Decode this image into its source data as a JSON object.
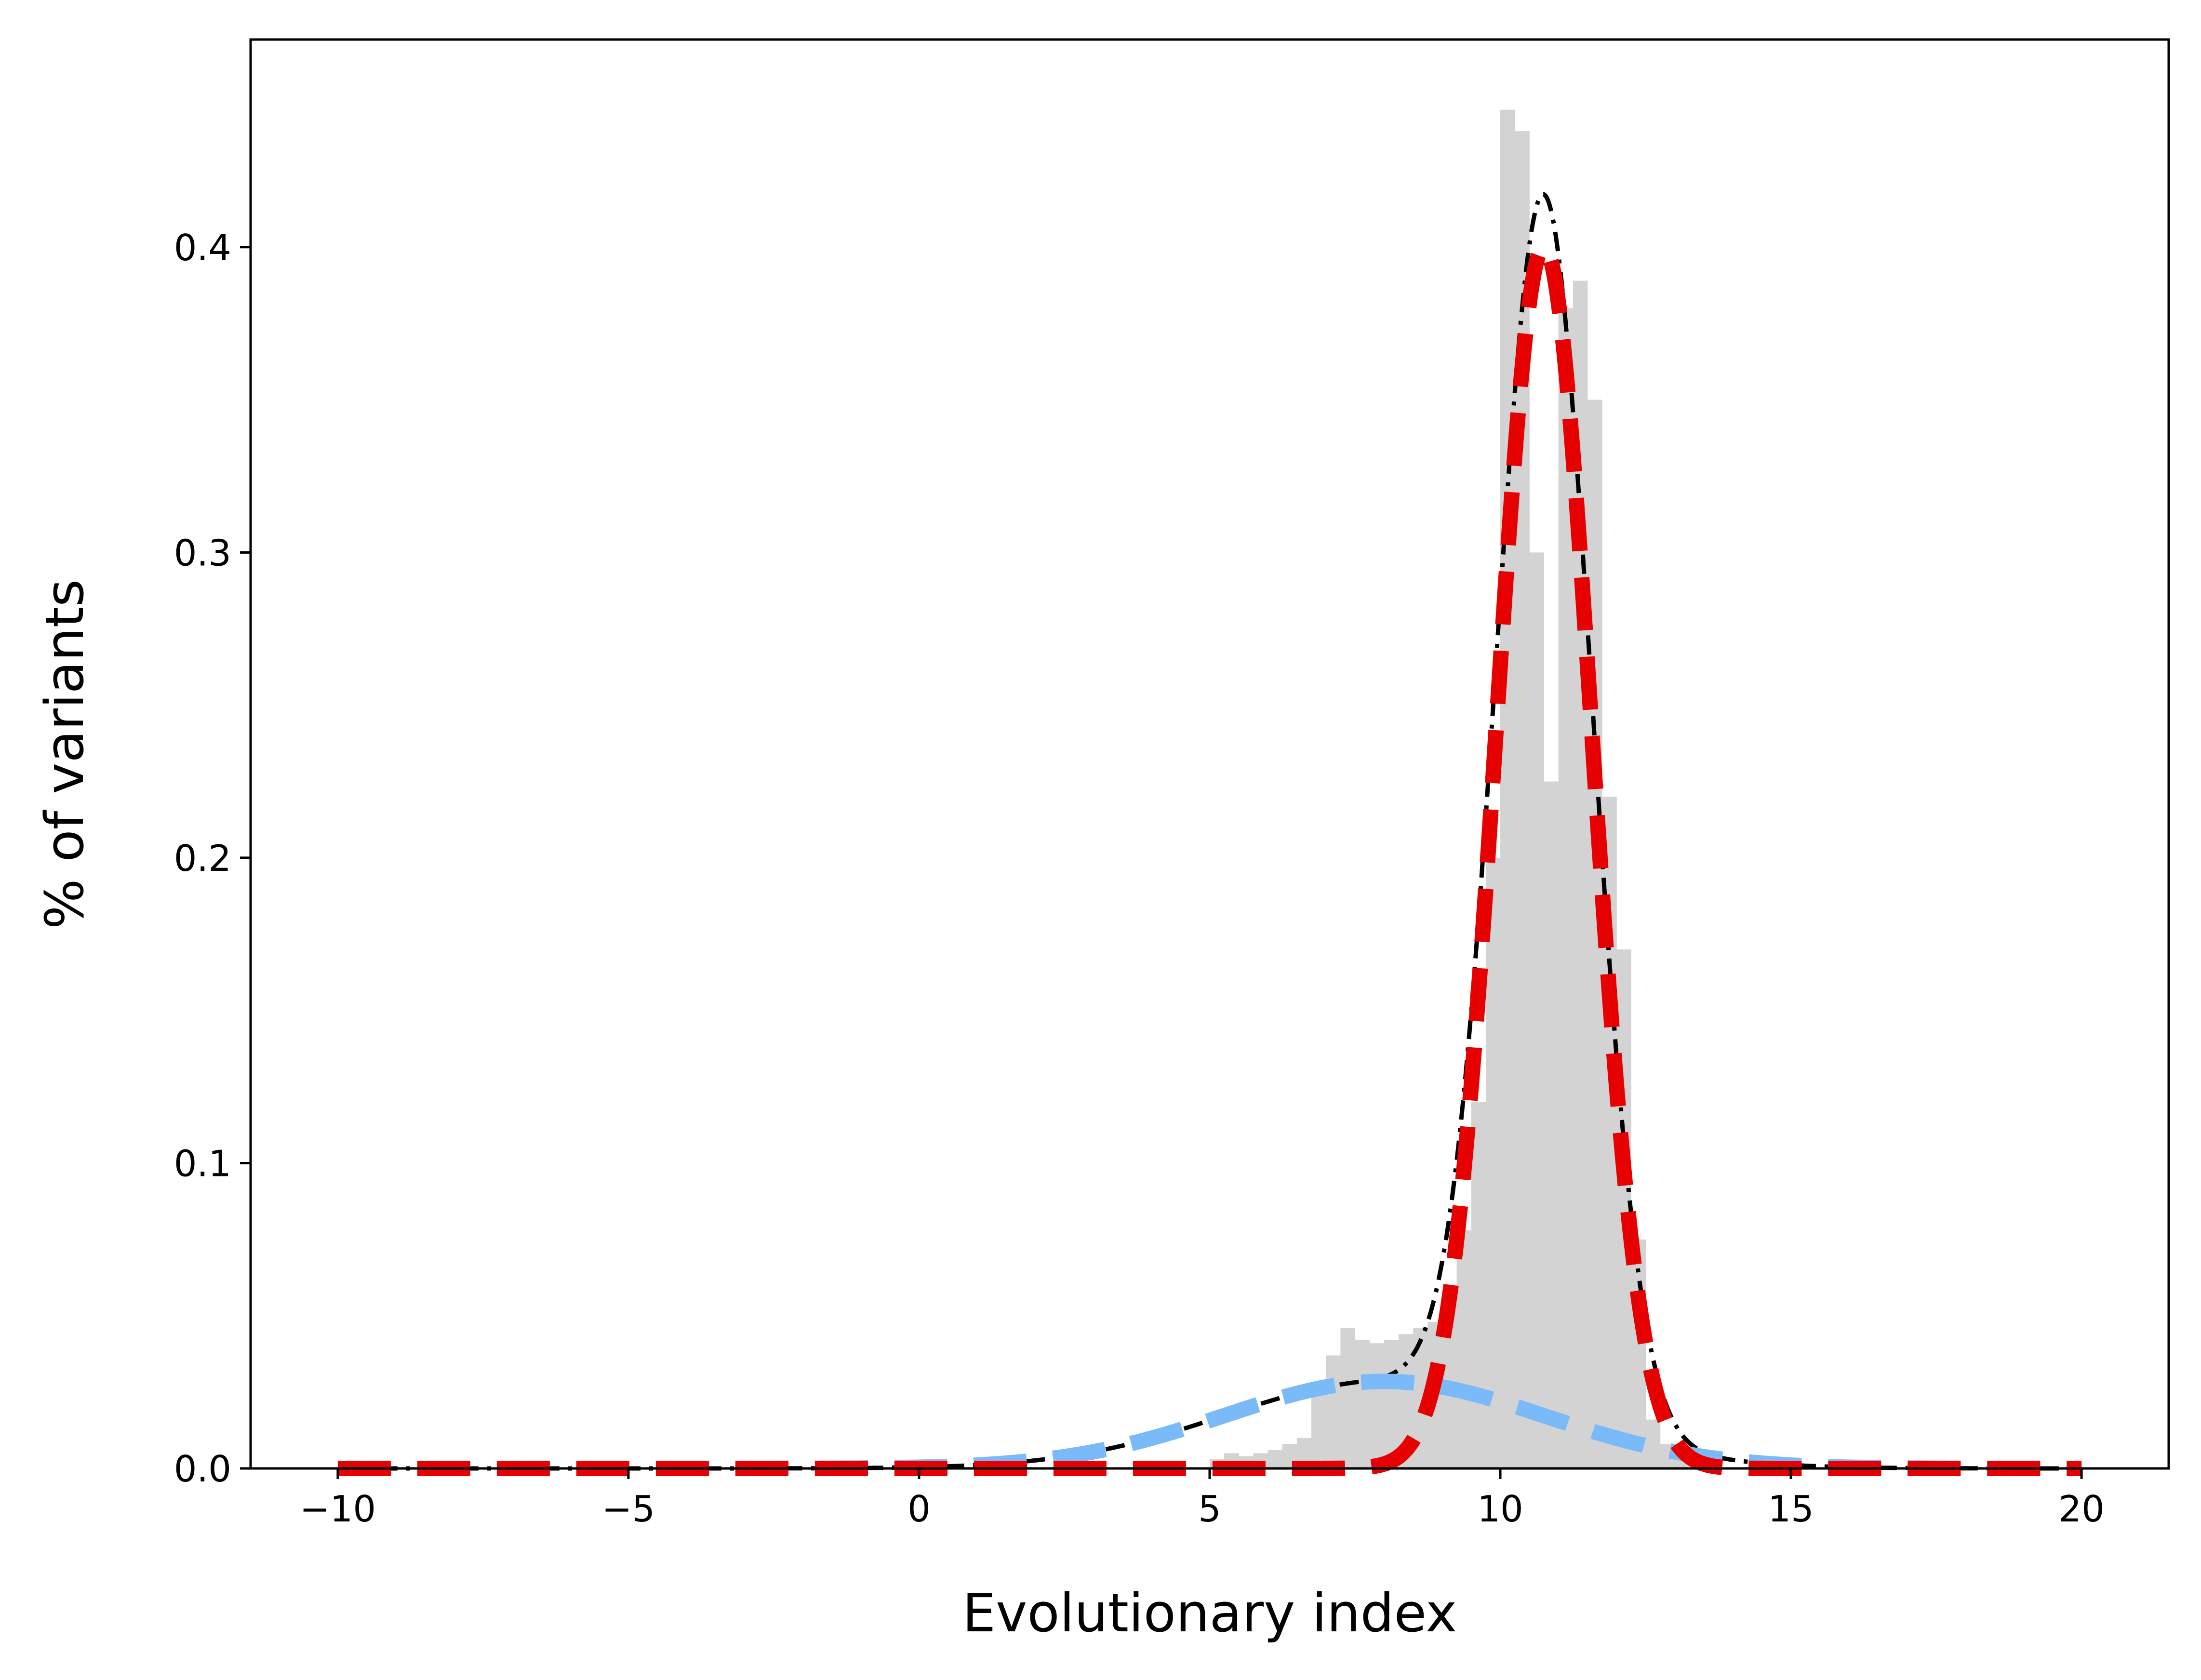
{
  "chart_data": {
    "type": "histogram",
    "xlabel": "Evolutionary index",
    "ylabel": "% of variants",
    "xlim": [
      -11.5,
      21.5
    ],
    "ylim": [
      0.0,
      0.468
    ],
    "x_ticks": [
      -10,
      -5,
      0,
      5,
      10,
      15,
      20
    ],
    "x_tick_labels": [
      "−10",
      "−5",
      "0",
      "5",
      "10",
      "15",
      "20"
    ],
    "y_ticks": [
      0.0,
      0.1,
      0.2,
      0.3,
      0.4
    ],
    "y_tick_labels": [
      "0.0",
      "0.1",
      "0.2",
      "0.3",
      "0.4"
    ],
    "grid": false,
    "histogram": {
      "color": "#d3d3d3",
      "bin_width": 0.25,
      "bins": [
        {
          "x0": 5.0,
          "value": 0.003
        },
        {
          "x0": 5.25,
          "value": 0.005
        },
        {
          "x0": 5.5,
          "value": 0.004
        },
        {
          "x0": 5.75,
          "value": 0.005
        },
        {
          "x0": 6.0,
          "value": 0.006
        },
        {
          "x0": 6.25,
          "value": 0.008
        },
        {
          "x0": 6.5,
          "value": 0.01
        },
        {
          "x0": 6.75,
          "value": 0.025
        },
        {
          "x0": 7.0,
          "value": 0.037
        },
        {
          "x0": 7.25,
          "value": 0.046
        },
        {
          "x0": 7.5,
          "value": 0.042
        },
        {
          "x0": 7.75,
          "value": 0.041
        },
        {
          "x0": 8.0,
          "value": 0.042
        },
        {
          "x0": 8.25,
          "value": 0.044
        },
        {
          "x0": 8.5,
          "value": 0.046
        },
        {
          "x0": 8.75,
          "value": 0.048
        },
        {
          "x0": 9.0,
          "value": 0.056
        },
        {
          "x0": 9.25,
          "value": 0.078
        },
        {
          "x0": 9.5,
          "value": 0.12
        },
        {
          "x0": 9.75,
          "value": 0.2
        },
        {
          "x0": 10.0,
          "value": 0.445
        },
        {
          "x0": 10.25,
          "value": 0.438
        },
        {
          "x0": 10.5,
          "value": 0.3
        },
        {
          "x0": 10.75,
          "value": 0.225
        },
        {
          "x0": 11.0,
          "value": 0.38
        },
        {
          "x0": 11.25,
          "value": 0.389
        },
        {
          "x0": 11.5,
          "value": 0.35
        },
        {
          "x0": 11.75,
          "value": 0.22
        },
        {
          "x0": 12.0,
          "value": 0.17
        },
        {
          "x0": 12.25,
          "value": 0.075
        },
        {
          "x0": 12.5,
          "value": 0.016
        },
        {
          "x0": 12.75,
          "value": 0.008
        },
        {
          "x0": 13.0,
          "value": 0.004
        }
      ]
    },
    "series": [
      {
        "kind": "gaussian",
        "mean": 8.0,
        "sigma": 2.75,
        "peak": 0.0285,
        "color": "#7abaf8",
        "style": "dashed",
        "x_range": [
          -10,
          20
        ]
      },
      {
        "kind": "gaussian",
        "mean": 10.75,
        "sigma": 0.82,
        "peak": 0.4,
        "color": "#e60000",
        "style": "dashed",
        "x_range": [
          -10,
          20
        ]
      },
      {
        "kind": "mixture-sum",
        "color": "#000000",
        "style": "dashdot",
        "x_range": [
          -10,
          20
        ]
      }
    ]
  }
}
